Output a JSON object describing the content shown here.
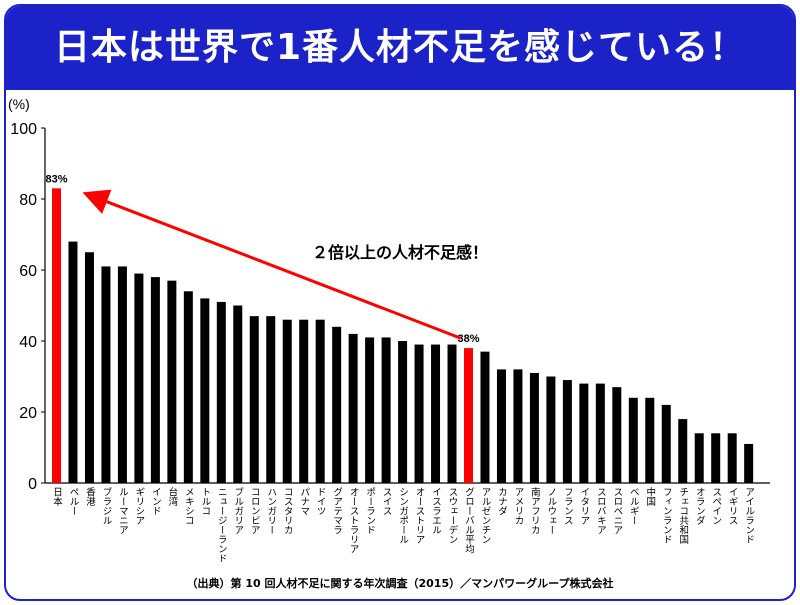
{
  "banner": {
    "title": "日本は世界で1番人材不足を感じている！"
  },
  "colors": {
    "banner": "#1a22c8",
    "highlight": "#ff0000",
    "bar": "#000000"
  },
  "source_note": "（出典）第 10 回人材不足に関する年次調査（2015）／マンパワーグループ株式会社",
  "chart_data": {
    "type": "bar",
    "title": "",
    "ylabel": "(%)",
    "xlabel": "",
    "ylim": [
      0,
      100
    ],
    "yticks": [
      0,
      20,
      40,
      60,
      80,
      100
    ],
    "grid": false,
    "categories": [
      "日本",
      "ペルー",
      "香港",
      "ブラジル",
      "ルーマニア",
      "ギリシア",
      "インド",
      "台湾",
      "メキシコ",
      "トルコ",
      "ニュージーランド",
      "ブルガリア",
      "コロンビア",
      "ハンガリー",
      "コスタリカ",
      "パナマ",
      "ドイツ",
      "グアテマラ",
      "オーストラリア",
      "ポーランド",
      "スイス",
      "シンガポール",
      "オーストリア",
      "イスラエル",
      "スウェーデン",
      "グローバル平均",
      "アルゼンチン",
      "カナダ",
      "アメリカ",
      "南アフリカ",
      "ノルウェー",
      "フランス",
      "イタリア",
      "スロバキア",
      "スロベニア",
      "ベルギー",
      "中国",
      "フィンランド",
      "チェコ共和国",
      "オランダ",
      "スペイン",
      "イギリス",
      "アイルランド"
    ],
    "values": [
      83,
      68,
      65,
      61,
      61,
      59,
      58,
      57,
      54,
      52,
      51,
      50,
      47,
      47,
      46,
      46,
      46,
      44,
      42,
      41,
      41,
      40,
      39,
      39,
      39,
      38,
      37,
      32,
      32,
      31,
      30,
      29,
      28,
      28,
      27,
      24,
      24,
      22,
      18,
      14,
      14,
      14,
      11
    ],
    "highlighted": [
      "日本",
      "グローバル平均"
    ],
    "data_labels": [
      {
        "category": "日本",
        "text": "83%"
      },
      {
        "category": "グローバル平均",
        "text": "38%"
      }
    ],
    "annotation": {
      "text": "２倍以上の人材不足感！",
      "arrow_from": "グローバル平均",
      "arrow_to": "日本"
    }
  }
}
